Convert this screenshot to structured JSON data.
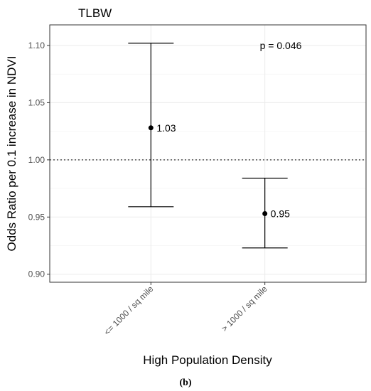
{
  "chart_data": {
    "type": "errorbar",
    "title": "TLBW",
    "xlabel": "High Population Density",
    "ylabel": "Odds Ratio per 0.1 increase in NDVI",
    "categories": [
      "<= 1000 / sq mile",
      "> 1000 / sq mile"
    ],
    "estimates": [
      1.028,
      0.953
    ],
    "lower": [
      0.959,
      0.923
    ],
    "upper": [
      1.102,
      0.984
    ],
    "point_labels": [
      "1.03",
      "0.95"
    ],
    "ylim": [
      0.893,
      1.118
    ],
    "yticks": [
      0.9,
      0.95,
      1.0,
      1.05,
      1.1
    ],
    "ytick_labels": [
      "0.90",
      "0.95",
      "1.00",
      "1.05",
      "1.10"
    ],
    "reference_line": 1.0,
    "annotation": "p = 0.046",
    "grid": true,
    "legend": "none"
  },
  "caption": "(b)"
}
